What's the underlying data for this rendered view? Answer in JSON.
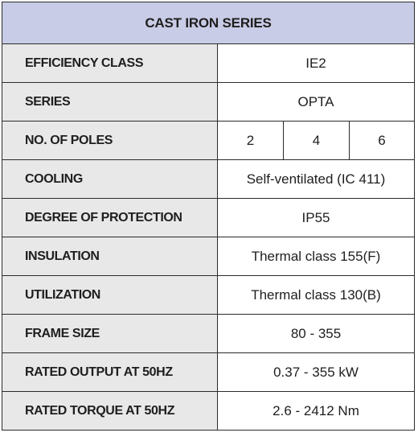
{
  "title": "CAST IRON SERIES",
  "rows": [
    {
      "label": "EFFICIENCY CLASS",
      "value": "IE2"
    },
    {
      "label": "SERIES",
      "value": "OPTA"
    },
    {
      "label": "NO. OF POLES",
      "values": [
        "2",
        "4",
        "6"
      ]
    },
    {
      "label": "COOLING",
      "value": "Self-ventilated (IC 411)"
    },
    {
      "label": "DEGREE OF PROTECTION",
      "value": "IP55"
    },
    {
      "label": "INSULATION",
      "value": "Thermal class 155(F)"
    },
    {
      "label": "UTILIZATION",
      "value": "Thermal class 130(B)"
    },
    {
      "label": "FRAME SIZE",
      "value": "80 - 355"
    },
    {
      "label": "RATED OUTPUT AT 50HZ",
      "value": "0.37 - 355 kW"
    },
    {
      "label": "RATED TORQUE AT 50HZ",
      "value": "2.6 - 2412 Nm"
    }
  ],
  "colors": {
    "header_bg": "#c9cce6",
    "label_bg": "#e8e8e8",
    "value_bg": "#ffffff",
    "border": "#2b2b2b"
  }
}
